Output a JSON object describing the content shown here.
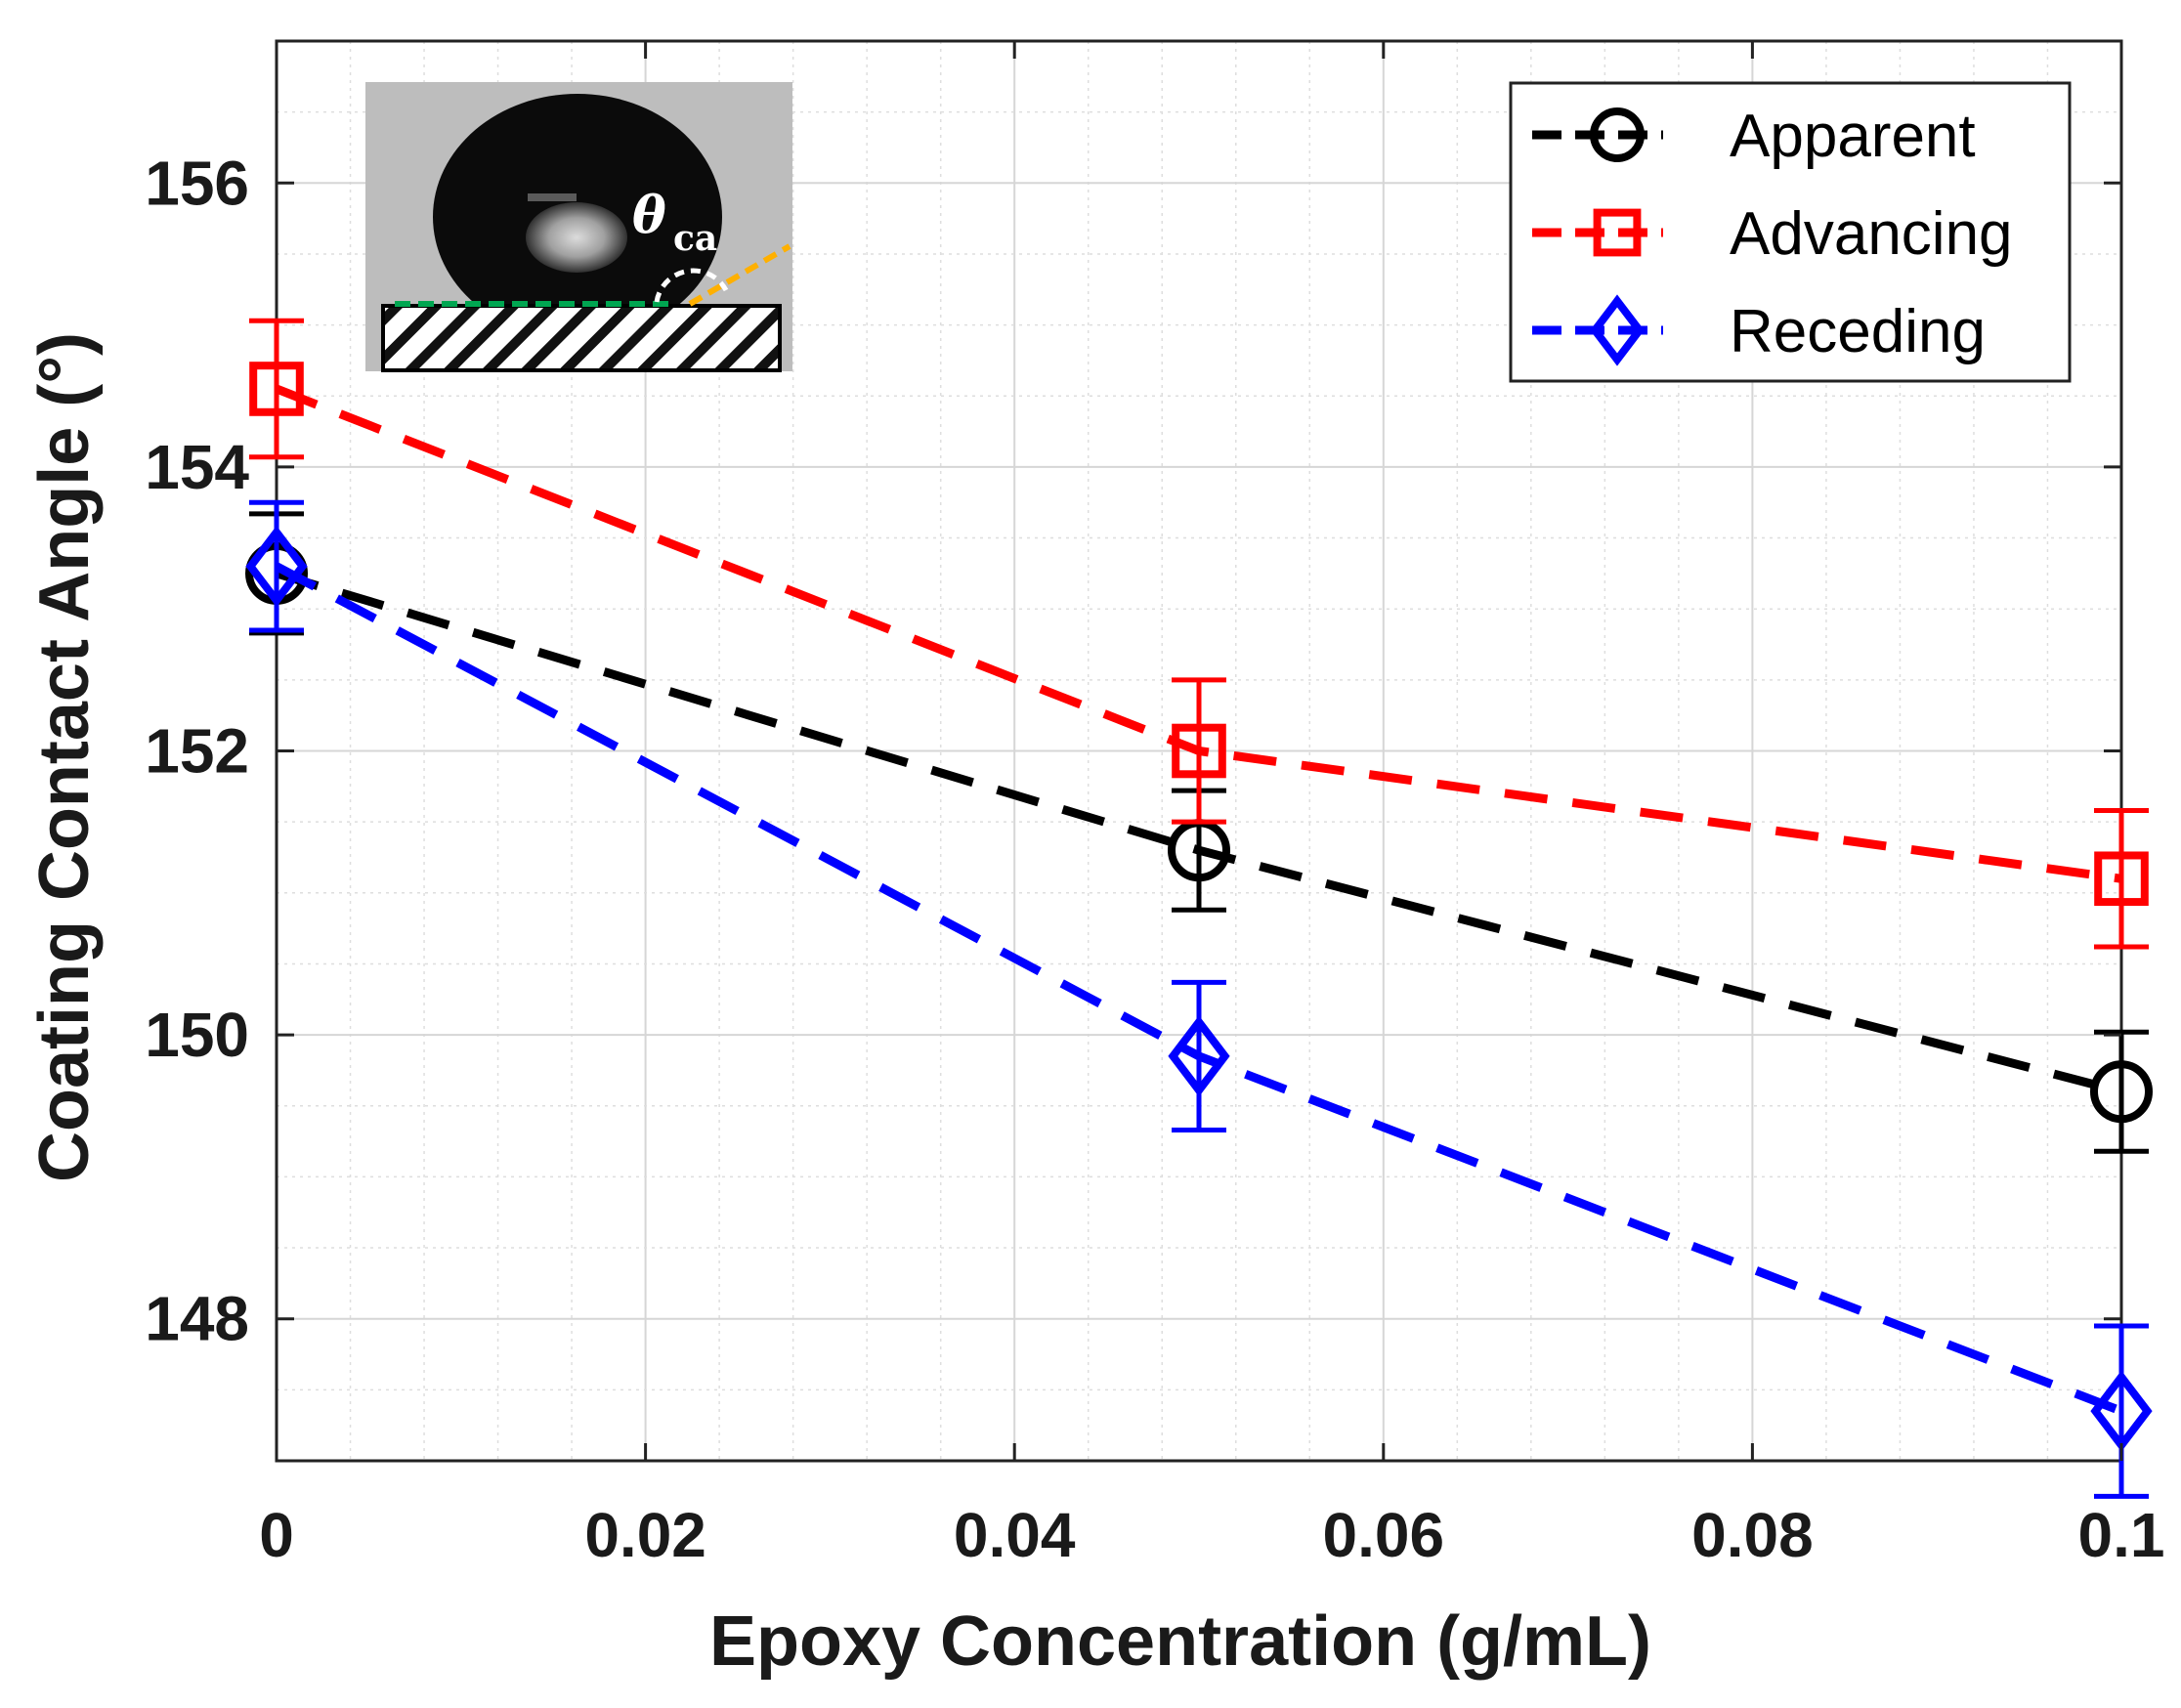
{
  "chart_data": {
    "type": "line",
    "xlabel": "Epoxy Concentration (g/mL)",
    "ylabel": "Coating Contact Angle (°)",
    "xlim": [
      0,
      0.1
    ],
    "ylim": [
      147,
      157
    ],
    "x_ticks": [
      0,
      0.02,
      0.04,
      0.06,
      0.08,
      0.1
    ],
    "x_tick_labels": [
      "0",
      "0.02",
      "0.04",
      "0.06",
      "0.08",
      "0.1"
    ],
    "y_ticks": [
      148,
      150,
      152,
      154,
      156
    ],
    "y_tick_labels": [
      "148",
      "150",
      "152",
      "154",
      "156"
    ],
    "grid": true,
    "minor_grid": true,
    "legend_position": "top-right",
    "x": [
      0,
      0.05,
      0.1
    ],
    "series": [
      {
        "name": "Apparent",
        "color": "#000000",
        "marker": "circle",
        "line_style": "dashed",
        "values": [
          153.25,
          151.3,
          149.6
        ],
        "error": [
          0.42,
          0.42,
          0.42
        ]
      },
      {
        "name": "Advancing",
        "color": "#ff0000",
        "marker": "square",
        "line_style": "dashed",
        "values": [
          154.55,
          152.0,
          151.1
        ],
        "error": [
          0.48,
          0.5,
          0.48
        ]
      },
      {
        "name": "Receding",
        "color": "#0000ff",
        "marker": "diamond",
        "line_style": "dashed",
        "values": [
          153.3,
          149.85,
          147.35
        ],
        "error": [
          0.45,
          0.52,
          0.6
        ]
      }
    ],
    "inset": {
      "description": "water droplet on coated substrate",
      "theta_symbol": "θ",
      "theta_subscript": "ca"
    }
  }
}
